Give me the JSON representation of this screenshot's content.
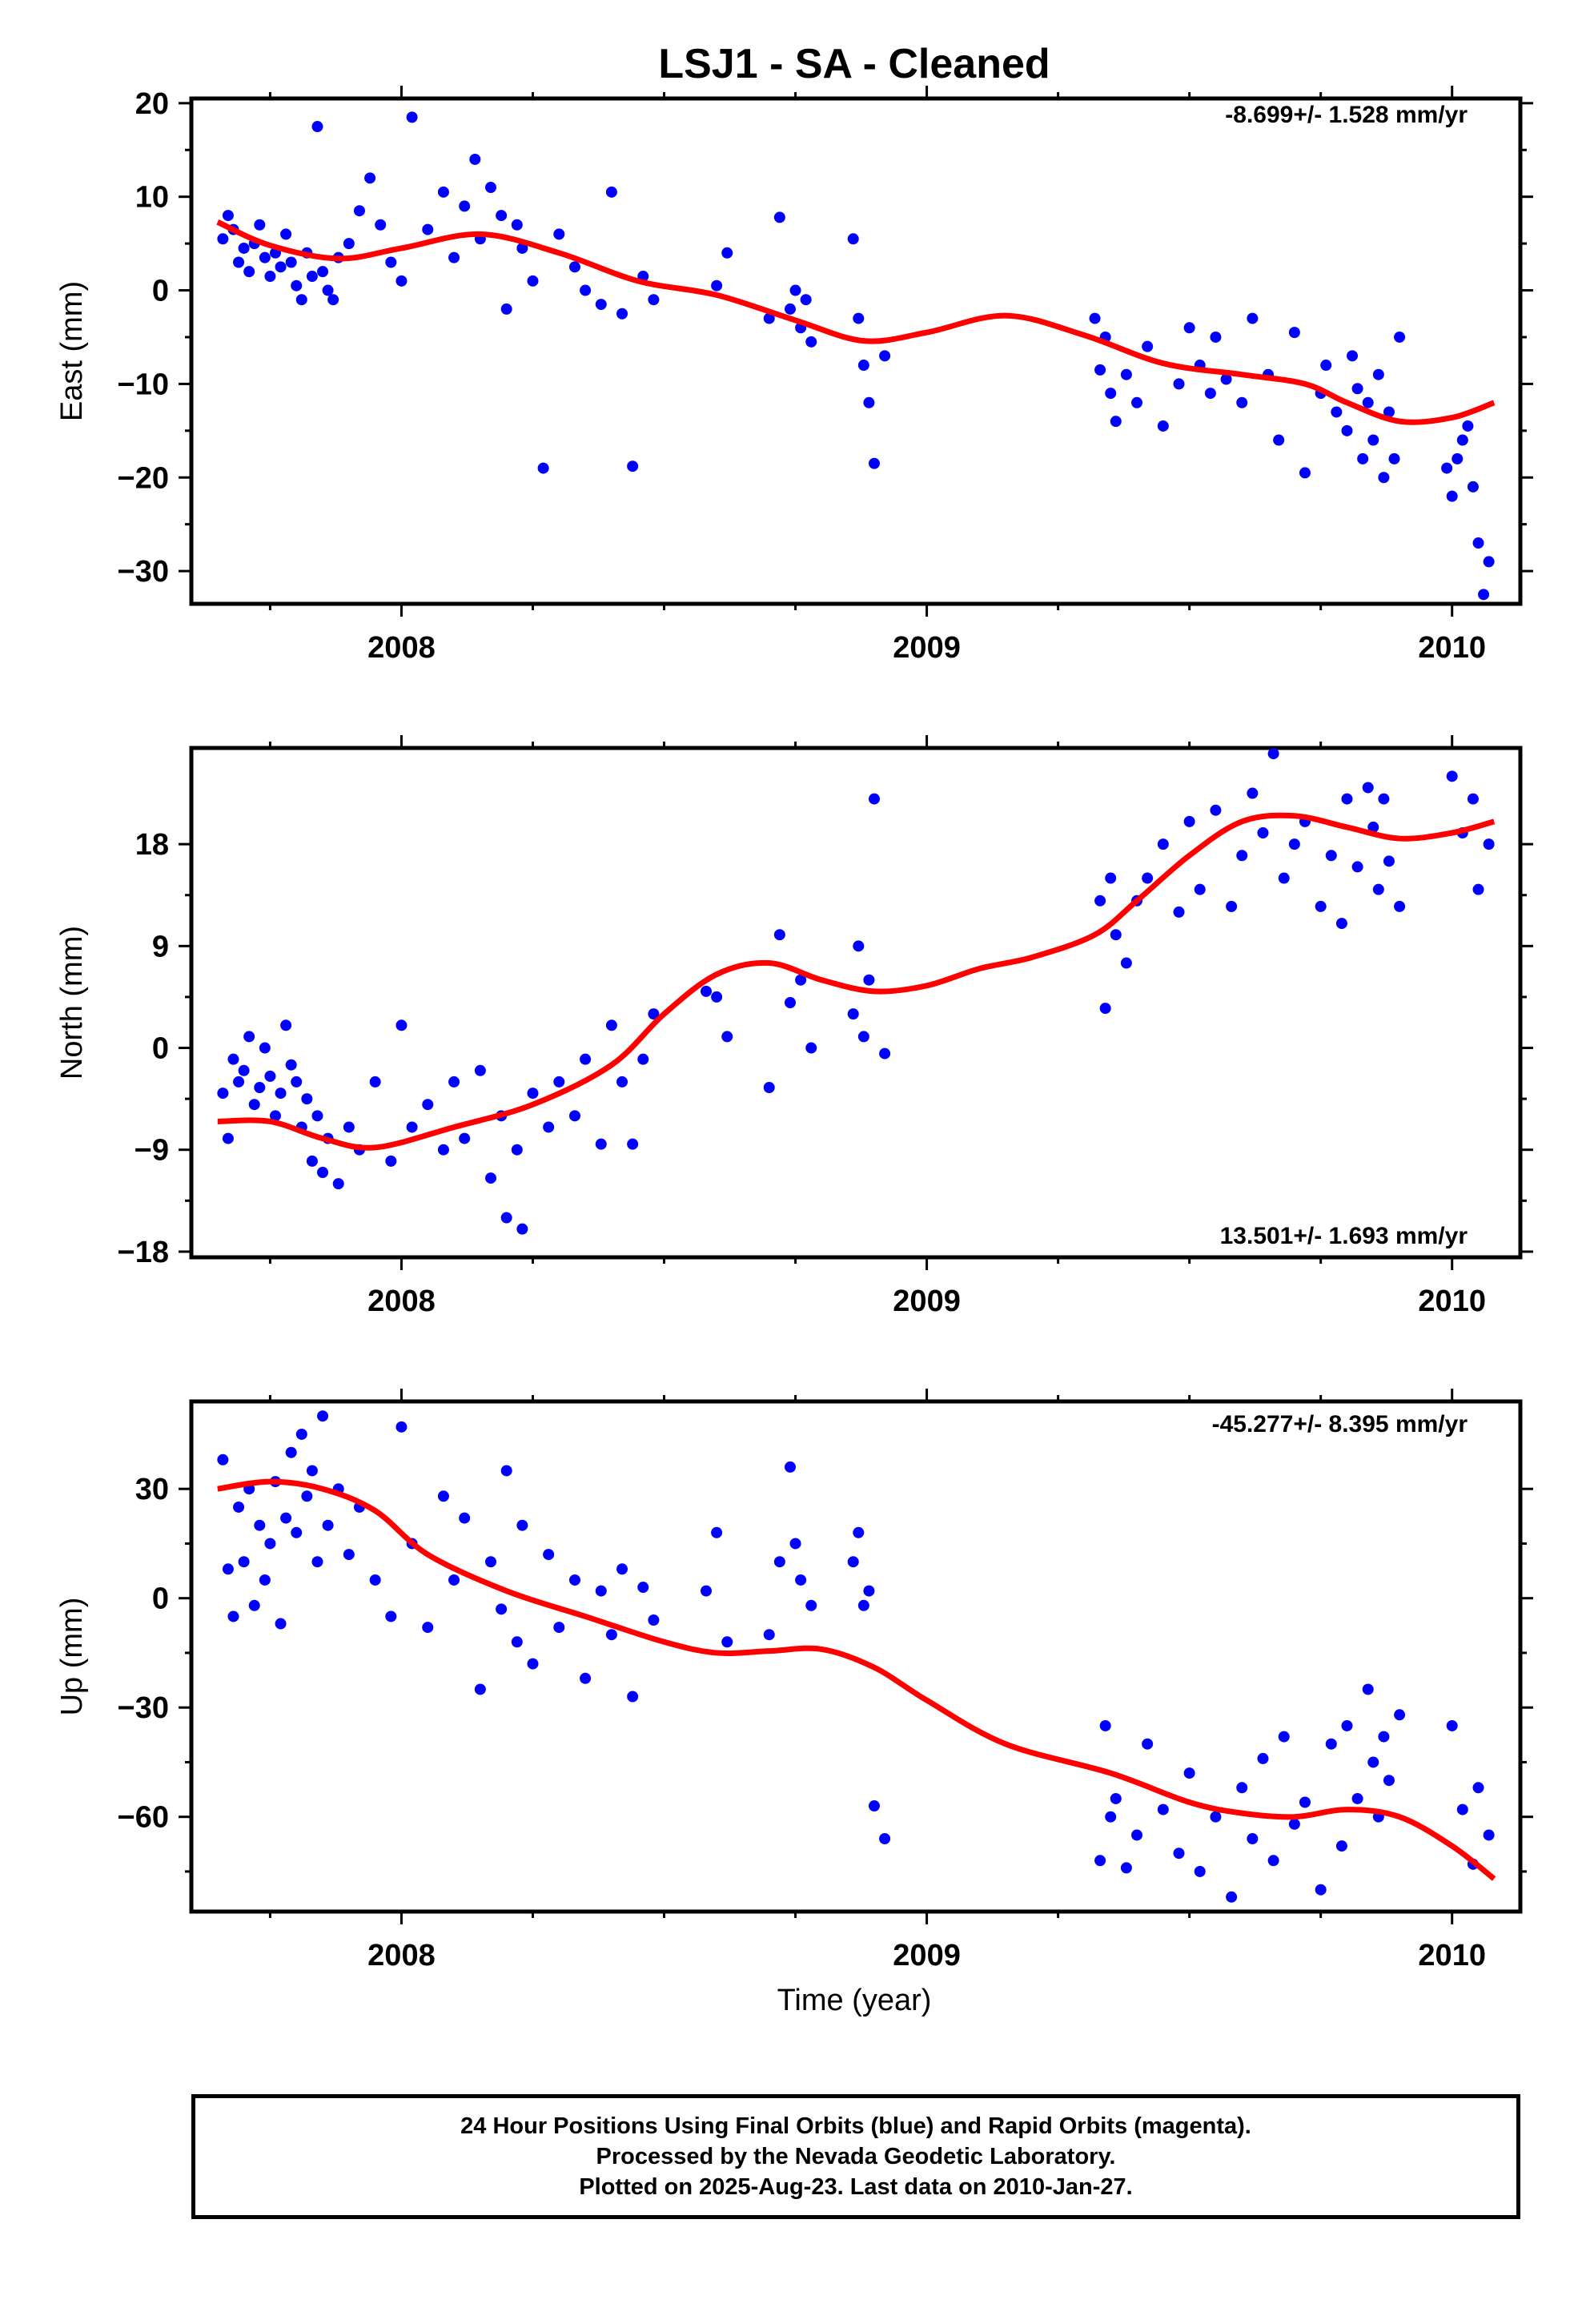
{
  "title": "LSJ1  - SA - Cleaned",
  "xlabel": "Time (year)",
  "footer": {
    "line1": "24 Hour Positions Using Final Orbits (blue) and Rapid Orbits (magenta).",
    "line2": "Processed by the Nevada Geodetic Laboratory.",
    "line3": "Plotted on 2025-Aug-23. Last data on 2010-Jan-27."
  },
  "colors": {
    "final_orbits": "#0000ff",
    "fit": "#ff0000",
    "frame": "#000000"
  },
  "chart_data": [
    {
      "type": "scatter",
      "ylabel": "East (mm)",
      "rate": "-8.699+/- 1.528 mm/yr",
      "xlim": [
        2007.6,
        2010.13
      ],
      "ylim": [
        -33.5,
        20.5
      ],
      "x_ticks": [
        2008,
        2009,
        2010
      ],
      "y_ticks": [
        20,
        10,
        0,
        -10,
        -20,
        -30
      ],
      "fit": {
        "x": [
          2007.65,
          2007.75,
          2007.88,
          2008.0,
          2008.15,
          2008.3,
          2008.45,
          2008.6,
          2008.75,
          2008.88,
          2009.0,
          2009.15,
          2009.3,
          2009.45,
          2009.6,
          2009.72,
          2009.8,
          2009.9,
          2010.0,
          2010.08
        ],
        "y": [
          7.3,
          4.8,
          3.4,
          4.5,
          6.0,
          4.0,
          1.0,
          -0.5,
          -3.2,
          -5.4,
          -4.5,
          -2.7,
          -4.8,
          -7.8,
          -9.0,
          -10.0,
          -12.0,
          -14.0,
          -13.6,
          -12.0
        ]
      },
      "points": {
        "x": [
          2007.66,
          2007.67,
          2007.68,
          2007.69,
          2007.7,
          2007.71,
          2007.72,
          2007.73,
          2007.74,
          2007.75,
          2007.76,
          2007.77,
          2007.78,
          2007.79,
          2007.8,
          2007.81,
          2007.82,
          2007.83,
          2007.84,
          2007.85,
          2007.86,
          2007.87,
          2007.88,
          2007.9,
          2007.92,
          2007.94,
          2007.96,
          2007.98,
          2008.0,
          2008.02,
          2008.05,
          2008.08,
          2008.1,
          2008.12,
          2008.14,
          2008.15,
          2008.17,
          2008.19,
          2008.2,
          2008.22,
          2008.23,
          2008.25,
          2008.27,
          2008.3,
          2008.33,
          2008.35,
          2008.38,
          2008.4,
          2008.42,
          2008.44,
          2008.46,
          2008.48,
          2008.6,
          2008.62,
          2008.7,
          2008.72,
          2008.74,
          2008.75,
          2008.76,
          2008.77,
          2008.78,
          2008.86,
          2008.87,
          2008.88,
          2008.89,
          2008.9,
          2008.92,
          2009.32,
          2009.33,
          2009.34,
          2009.35,
          2009.36,
          2009.38,
          2009.4,
          2009.42,
          2009.45,
          2009.48,
          2009.5,
          2009.52,
          2009.54,
          2009.55,
          2009.57,
          2009.6,
          2009.62,
          2009.65,
          2009.67,
          2009.7,
          2009.72,
          2009.75,
          2009.76,
          2009.78,
          2009.8,
          2009.81,
          2009.82,
          2009.83,
          2009.84,
          2009.85,
          2009.86,
          2009.87,
          2009.88,
          2009.89,
          2009.9,
          2009.99,
          2010.0,
          2010.01,
          2010.02,
          2010.03,
          2010.04,
          2010.05,
          2010.06,
          2010.07
        ],
        "y": [
          5.5,
          8.0,
          6.5,
          3.0,
          4.5,
          2.0,
          5.0,
          7.0,
          3.5,
          1.5,
          4.0,
          2.5,
          6.0,
          3.0,
          0.5,
          -1.0,
          4.0,
          1.5,
          17.5,
          2.0,
          0.0,
          -1.0,
          3.5,
          5.0,
          8.5,
          12.0,
          7.0,
          3.0,
          1.0,
          18.5,
          6.5,
          10.5,
          3.5,
          9.0,
          14.0,
          5.5,
          11.0,
          8.0,
          -2.0,
          7.0,
          4.5,
          1.0,
          -19.0,
          6.0,
          2.5,
          0.0,
          -1.5,
          10.5,
          -2.5,
          -18.8,
          1.5,
          -1.0,
          0.5,
          4.0,
          -3.0,
          7.8,
          -2.0,
          0.0,
          -4.0,
          -1.0,
          -5.5,
          5.5,
          -3.0,
          -8.0,
          -12.0,
          -18.5,
          -7.0,
          -3.0,
          -8.5,
          -5.0,
          -11.0,
          -14.0,
          -9.0,
          -12.0,
          -6.0,
          -14.5,
          -10.0,
          -4.0,
          -8.0,
          -11.0,
          -5.0,
          -9.5,
          -12.0,
          -3.0,
          -9.0,
          -16.0,
          -4.5,
          -19.5,
          -11.0,
          -8.0,
          -13.0,
          -15.0,
          -7.0,
          -10.5,
          -18.0,
          -12.0,
          -16.0,
          -9.0,
          -20.0,
          -13.0,
          -18.0,
          -5.0,
          -19.0,
          -22.0,
          -18.0,
          -16.0,
          -14.5,
          -21.0,
          -27.0,
          -32.5,
          -29.0
        ]
      }
    },
    {
      "type": "scatter",
      "ylabel": "North (mm)",
      "rate": "13.501+/- 1.693 mm/yr",
      "xlim": [
        2007.6,
        2010.13
      ],
      "ylim": [
        -18.5,
        26.5
      ],
      "x_ticks": [
        2008,
        2009,
        2010
      ],
      "y_ticks": [
        18,
        9,
        0,
        -9,
        -18
      ],
      "fit": {
        "x": [
          2007.65,
          2007.75,
          2007.85,
          2007.95,
          2008.1,
          2008.25,
          2008.4,
          2008.5,
          2008.6,
          2008.7,
          2008.8,
          2008.9,
          2009.0,
          2009.1,
          2009.2,
          2009.32,
          2009.4,
          2009.5,
          2009.6,
          2009.7,
          2009.8,
          2009.9,
          2010.0,
          2010.08
        ],
        "y": [
          -6.5,
          -6.5,
          -8.0,
          -8.8,
          -7.0,
          -5.0,
          -1.5,
          3.0,
          6.5,
          7.5,
          6.0,
          5.0,
          5.5,
          7.0,
          8.0,
          10.0,
          13.0,
          17.0,
          20.0,
          20.5,
          19.5,
          18.5,
          19.0,
          20.0
        ]
      },
      "points": {
        "x": [
          2007.66,
          2007.67,
          2007.68,
          2007.69,
          2007.7,
          2007.71,
          2007.72,
          2007.73,
          2007.74,
          2007.75,
          2007.76,
          2007.77,
          2007.78,
          2007.79,
          2007.8,
          2007.81,
          2007.82,
          2007.83,
          2007.84,
          2007.85,
          2007.86,
          2007.88,
          2007.9,
          2007.92,
          2007.95,
          2007.98,
          2008.0,
          2008.02,
          2008.05,
          2008.08,
          2008.1,
          2008.12,
          2008.15,
          2008.17,
          2008.19,
          2008.2,
          2008.22,
          2008.23,
          2008.25,
          2008.28,
          2008.3,
          2008.33,
          2008.35,
          2008.38,
          2008.4,
          2008.42,
          2008.44,
          2008.46,
          2008.48,
          2008.58,
          2008.6,
          2008.62,
          2008.7,
          2008.72,
          2008.74,
          2008.76,
          2008.78,
          2008.86,
          2008.87,
          2008.88,
          2008.89,
          2008.9,
          2008.92,
          2009.33,
          2009.34,
          2009.35,
          2009.36,
          2009.38,
          2009.4,
          2009.42,
          2009.45,
          2009.48,
          2009.5,
          2009.52,
          2009.55,
          2009.58,
          2009.6,
          2009.62,
          2009.64,
          2009.66,
          2009.68,
          2009.7,
          2009.72,
          2009.75,
          2009.77,
          2009.79,
          2009.8,
          2009.82,
          2009.84,
          2009.85,
          2009.86,
          2009.87,
          2009.88,
          2009.9,
          2010.0,
          2010.02,
          2010.04,
          2010.05,
          2010.07
        ],
        "y": [
          -4.0,
          -8.0,
          -1.0,
          -3.0,
          -2.0,
          1.0,
          -5.0,
          -3.5,
          0.0,
          -2.5,
          -6.0,
          -4.0,
          2.0,
          -1.5,
          -3.0,
          -7.0,
          -4.5,
          -10.0,
          -6.0,
          -11.0,
          -8.0,
          -12.0,
          -7.0,
          -9.0,
          -3.0,
          -10.0,
          2.0,
          -7.0,
          -5.0,
          -9.0,
          -3.0,
          -8.0,
          -2.0,
          -11.5,
          -6.0,
          -15.0,
          -9.0,
          -16.0,
          -4.0,
          -7.0,
          -3.0,
          -6.0,
          -1.0,
          -8.5,
          2.0,
          -3.0,
          -8.5,
          -1.0,
          3.0,
          5.0,
          4.5,
          1.0,
          -3.5,
          10.0,
          4.0,
          6.0,
          0.0,
          3.0,
          9.0,
          1.0,
          6.0,
          22.0,
          -0.5,
          13.0,
          3.5,
          15.0,
          10.0,
          7.5,
          13.0,
          15.0,
          18.0,
          12.0,
          20.0,
          14.0,
          21.0,
          12.5,
          17.0,
          22.5,
          19.0,
          26.0,
          15.0,
          18.0,
          20.0,
          12.5,
          17.0,
          11.0,
          22.0,
          16.0,
          23.0,
          19.5,
          14.0,
          22.0,
          16.5,
          12.5,
          24.0,
          19.0,
          22.0,
          14.0,
          18.0
        ]
      }
    },
    {
      "type": "scatter",
      "ylabel": "Up (mm)",
      "rate": "-45.277+/- 8.395 mm/yr",
      "xlim": [
        2007.6,
        2010.13
      ],
      "ylim": [
        -86.0,
        54.0
      ],
      "x_ticks": [
        2008,
        2009,
        2010
      ],
      "y_ticks": [
        30,
        0,
        -30,
        -60
      ],
      "fit": {
        "x": [
          2007.65,
          2007.75,
          2007.85,
          2007.95,
          2008.05,
          2008.2,
          2008.35,
          2008.5,
          2008.6,
          2008.7,
          2008.8,
          2008.9,
          2009.0,
          2009.15,
          2009.35,
          2009.5,
          2009.6,
          2009.7,
          2009.8,
          2009.9,
          2010.0,
          2010.08
        ],
        "y": [
          30.0,
          32.0,
          30.0,
          24.0,
          12.0,
          2.0,
          -5.0,
          -12.0,
          -15.0,
          -14.5,
          -14.0,
          -19.0,
          -28.0,
          -40.0,
          -48.0,
          -56.0,
          -59.0,
          -60.0,
          -58.0,
          -60.0,
          -68.0,
          -77.0
        ]
      },
      "points": {
        "x": [
          2007.66,
          2007.67,
          2007.68,
          2007.69,
          2007.7,
          2007.71,
          2007.72,
          2007.73,
          2007.74,
          2007.75,
          2007.76,
          2007.77,
          2007.78,
          2007.79,
          2007.8,
          2007.81,
          2007.82,
          2007.83,
          2007.84,
          2007.85,
          2007.86,
          2007.88,
          2007.9,
          2007.92,
          2007.95,
          2007.98,
          2008.0,
          2008.02,
          2008.05,
          2008.08,
          2008.1,
          2008.12,
          2008.15,
          2008.17,
          2008.19,
          2008.2,
          2008.22,
          2008.23,
          2008.25,
          2008.28,
          2008.3,
          2008.33,
          2008.35,
          2008.38,
          2008.4,
          2008.42,
          2008.44,
          2008.46,
          2008.48,
          2008.58,
          2008.6,
          2008.62,
          2008.7,
          2008.72,
          2008.74,
          2008.75,
          2008.76,
          2008.78,
          2008.86,
          2008.87,
          2008.88,
          2008.89,
          2008.9,
          2008.92,
          2009.33,
          2009.34,
          2009.35,
          2009.36,
          2009.38,
          2009.4,
          2009.42,
          2009.45,
          2009.48,
          2009.5,
          2009.52,
          2009.55,
          2009.58,
          2009.6,
          2009.62,
          2009.64,
          2009.66,
          2009.68,
          2009.7,
          2009.72,
          2009.75,
          2009.77,
          2009.79,
          2009.8,
          2009.82,
          2009.84,
          2009.85,
          2009.86,
          2009.87,
          2009.88,
          2009.9,
          2010.0,
          2010.02,
          2010.04,
          2010.05,
          2010.07
        ],
        "y": [
          38,
          8,
          -5,
          25,
          10,
          30,
          -2,
          20,
          5,
          15,
          32,
          -7,
          22,
          40,
          18,
          45,
          28,
          35,
          10,
          50,
          20,
          30,
          12,
          25,
          5,
          -5,
          47,
          15,
          -8,
          28,
          5,
          22,
          -25,
          10,
          -3,
          35,
          -12,
          20,
          -18,
          12,
          -8,
          5,
          -22,
          2,
          -10,
          8,
          -27,
          3,
          -6,
          2,
          18,
          -12,
          -10,
          10,
          36,
          15,
          5,
          -2,
          10,
          18,
          -2,
          2,
          -57,
          -66,
          -72,
          -35,
          -60,
          -55,
          -74,
          -65,
          -40,
          -58,
          -70,
          -48,
          -75,
          -60,
          -82,
          -52,
          -66,
          -44,
          -72,
          -38,
          -62,
          -56,
          -80,
          -40,
          -68,
          -35,
          -55,
          -25,
          -45,
          -60,
          -38,
          -50,
          -32,
          -35,
          -58,
          -73,
          -52,
          -65
        ]
      }
    }
  ]
}
